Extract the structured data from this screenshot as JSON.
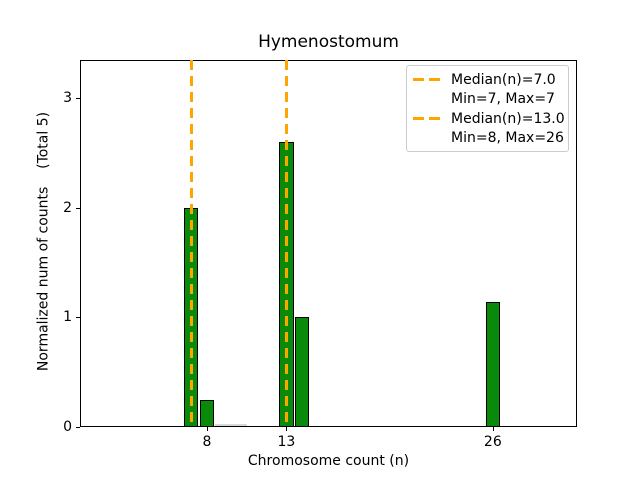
{
  "chart_data": {
    "type": "bar",
    "title": "Hymenostomum",
    "xlabel": "Chromosome count (n)",
    "ylabel": "Normalized num of counts    (Total 5)",
    "xticks": [
      8,
      13,
      26
    ],
    "yticks": [
      0,
      1,
      2,
      3
    ],
    "xlim": [
      0,
      31.3
    ],
    "ylim": [
      0,
      3.35
    ],
    "grid": false,
    "bars": [
      {
        "x": 7,
        "height": 2.0
      },
      {
        "x": 8,
        "height": 0.25
      },
      {
        "x": 13,
        "height": 2.6
      },
      {
        "x": 14,
        "height": 1.0
      },
      {
        "x": 26,
        "height": 1.14
      }
    ],
    "bar_width": 0.9,
    "bar_color": "#0a8a0a",
    "bar_edge_color": "#000000",
    "median_lines": [
      {
        "x": 7.0,
        "label": "Median(n)=7.0"
      },
      {
        "x": 13.0,
        "label": "Median(n)=13.0"
      }
    ],
    "median_line_color": "#ffa500",
    "near_zero_segment": {
      "x_start": 8.5,
      "x_end": 10.5,
      "height": 0.02,
      "color": "#d9d9d9"
    },
    "legend": {
      "position": "upper right",
      "entries": [
        {
          "handle": "orange-dashed-line",
          "label": "Median(n)=7.0"
        },
        {
          "handle": "none",
          "label": "Min=7, Max=7"
        },
        {
          "handle": "orange-dashed-line",
          "label": "Median(n)=13.0"
        },
        {
          "handle": "none",
          "label": "Min=8, Max=26"
        }
      ]
    }
  }
}
